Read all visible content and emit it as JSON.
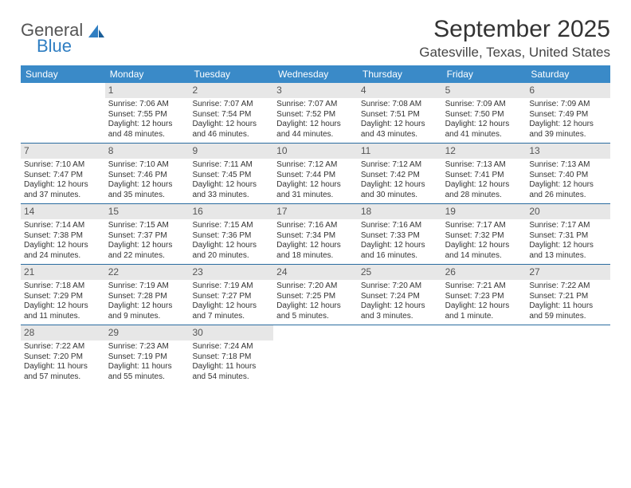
{
  "brand": {
    "name1": "General",
    "name2": "Blue",
    "accent": "#2f7ec2"
  },
  "title": "September 2025",
  "location": "Gatesville, Texas, United States",
  "colors": {
    "header_bg": "#3a8ac8",
    "header_fg": "#ffffff",
    "daynum_bg": "#e7e7e7",
    "daynum_fg": "#555555",
    "row_border": "#2b6ca0",
    "text": "#333333",
    "background": "#ffffff"
  },
  "dow": [
    "Sunday",
    "Monday",
    "Tuesday",
    "Wednesday",
    "Thursday",
    "Friday",
    "Saturday"
  ],
  "start_offset": 1,
  "days": [
    {
      "n": 1,
      "sr": "7:06 AM",
      "ss": "7:55 PM",
      "dl": "12 hours and 48 minutes."
    },
    {
      "n": 2,
      "sr": "7:07 AM",
      "ss": "7:54 PM",
      "dl": "12 hours and 46 minutes."
    },
    {
      "n": 3,
      "sr": "7:07 AM",
      "ss": "7:52 PM",
      "dl": "12 hours and 44 minutes."
    },
    {
      "n": 4,
      "sr": "7:08 AM",
      "ss": "7:51 PM",
      "dl": "12 hours and 43 minutes."
    },
    {
      "n": 5,
      "sr": "7:09 AM",
      "ss": "7:50 PM",
      "dl": "12 hours and 41 minutes."
    },
    {
      "n": 6,
      "sr": "7:09 AM",
      "ss": "7:49 PM",
      "dl": "12 hours and 39 minutes."
    },
    {
      "n": 7,
      "sr": "7:10 AM",
      "ss": "7:47 PM",
      "dl": "12 hours and 37 minutes."
    },
    {
      "n": 8,
      "sr": "7:10 AM",
      "ss": "7:46 PM",
      "dl": "12 hours and 35 minutes."
    },
    {
      "n": 9,
      "sr": "7:11 AM",
      "ss": "7:45 PM",
      "dl": "12 hours and 33 minutes."
    },
    {
      "n": 10,
      "sr": "7:12 AM",
      "ss": "7:44 PM",
      "dl": "12 hours and 31 minutes."
    },
    {
      "n": 11,
      "sr": "7:12 AM",
      "ss": "7:42 PM",
      "dl": "12 hours and 30 minutes."
    },
    {
      "n": 12,
      "sr": "7:13 AM",
      "ss": "7:41 PM",
      "dl": "12 hours and 28 minutes."
    },
    {
      "n": 13,
      "sr": "7:13 AM",
      "ss": "7:40 PM",
      "dl": "12 hours and 26 minutes."
    },
    {
      "n": 14,
      "sr": "7:14 AM",
      "ss": "7:38 PM",
      "dl": "12 hours and 24 minutes."
    },
    {
      "n": 15,
      "sr": "7:15 AM",
      "ss": "7:37 PM",
      "dl": "12 hours and 22 minutes."
    },
    {
      "n": 16,
      "sr": "7:15 AM",
      "ss": "7:36 PM",
      "dl": "12 hours and 20 minutes."
    },
    {
      "n": 17,
      "sr": "7:16 AM",
      "ss": "7:34 PM",
      "dl": "12 hours and 18 minutes."
    },
    {
      "n": 18,
      "sr": "7:16 AM",
      "ss": "7:33 PM",
      "dl": "12 hours and 16 minutes."
    },
    {
      "n": 19,
      "sr": "7:17 AM",
      "ss": "7:32 PM",
      "dl": "12 hours and 14 minutes."
    },
    {
      "n": 20,
      "sr": "7:17 AM",
      "ss": "7:31 PM",
      "dl": "12 hours and 13 minutes."
    },
    {
      "n": 21,
      "sr": "7:18 AM",
      "ss": "7:29 PM",
      "dl": "12 hours and 11 minutes."
    },
    {
      "n": 22,
      "sr": "7:19 AM",
      "ss": "7:28 PM",
      "dl": "12 hours and 9 minutes."
    },
    {
      "n": 23,
      "sr": "7:19 AM",
      "ss": "7:27 PM",
      "dl": "12 hours and 7 minutes."
    },
    {
      "n": 24,
      "sr": "7:20 AM",
      "ss": "7:25 PM",
      "dl": "12 hours and 5 minutes."
    },
    {
      "n": 25,
      "sr": "7:20 AM",
      "ss": "7:24 PM",
      "dl": "12 hours and 3 minutes."
    },
    {
      "n": 26,
      "sr": "7:21 AM",
      "ss": "7:23 PM",
      "dl": "12 hours and 1 minute."
    },
    {
      "n": 27,
      "sr": "7:22 AM",
      "ss": "7:21 PM",
      "dl": "11 hours and 59 minutes."
    },
    {
      "n": 28,
      "sr": "7:22 AM",
      "ss": "7:20 PM",
      "dl": "11 hours and 57 minutes."
    },
    {
      "n": 29,
      "sr": "7:23 AM",
      "ss": "7:19 PM",
      "dl": "11 hours and 55 minutes."
    },
    {
      "n": 30,
      "sr": "7:24 AM",
      "ss": "7:18 PM",
      "dl": "11 hours and 54 minutes."
    }
  ],
  "labels": {
    "sunrise": "Sunrise:",
    "sunset": "Sunset:",
    "daylight": "Daylight:"
  }
}
